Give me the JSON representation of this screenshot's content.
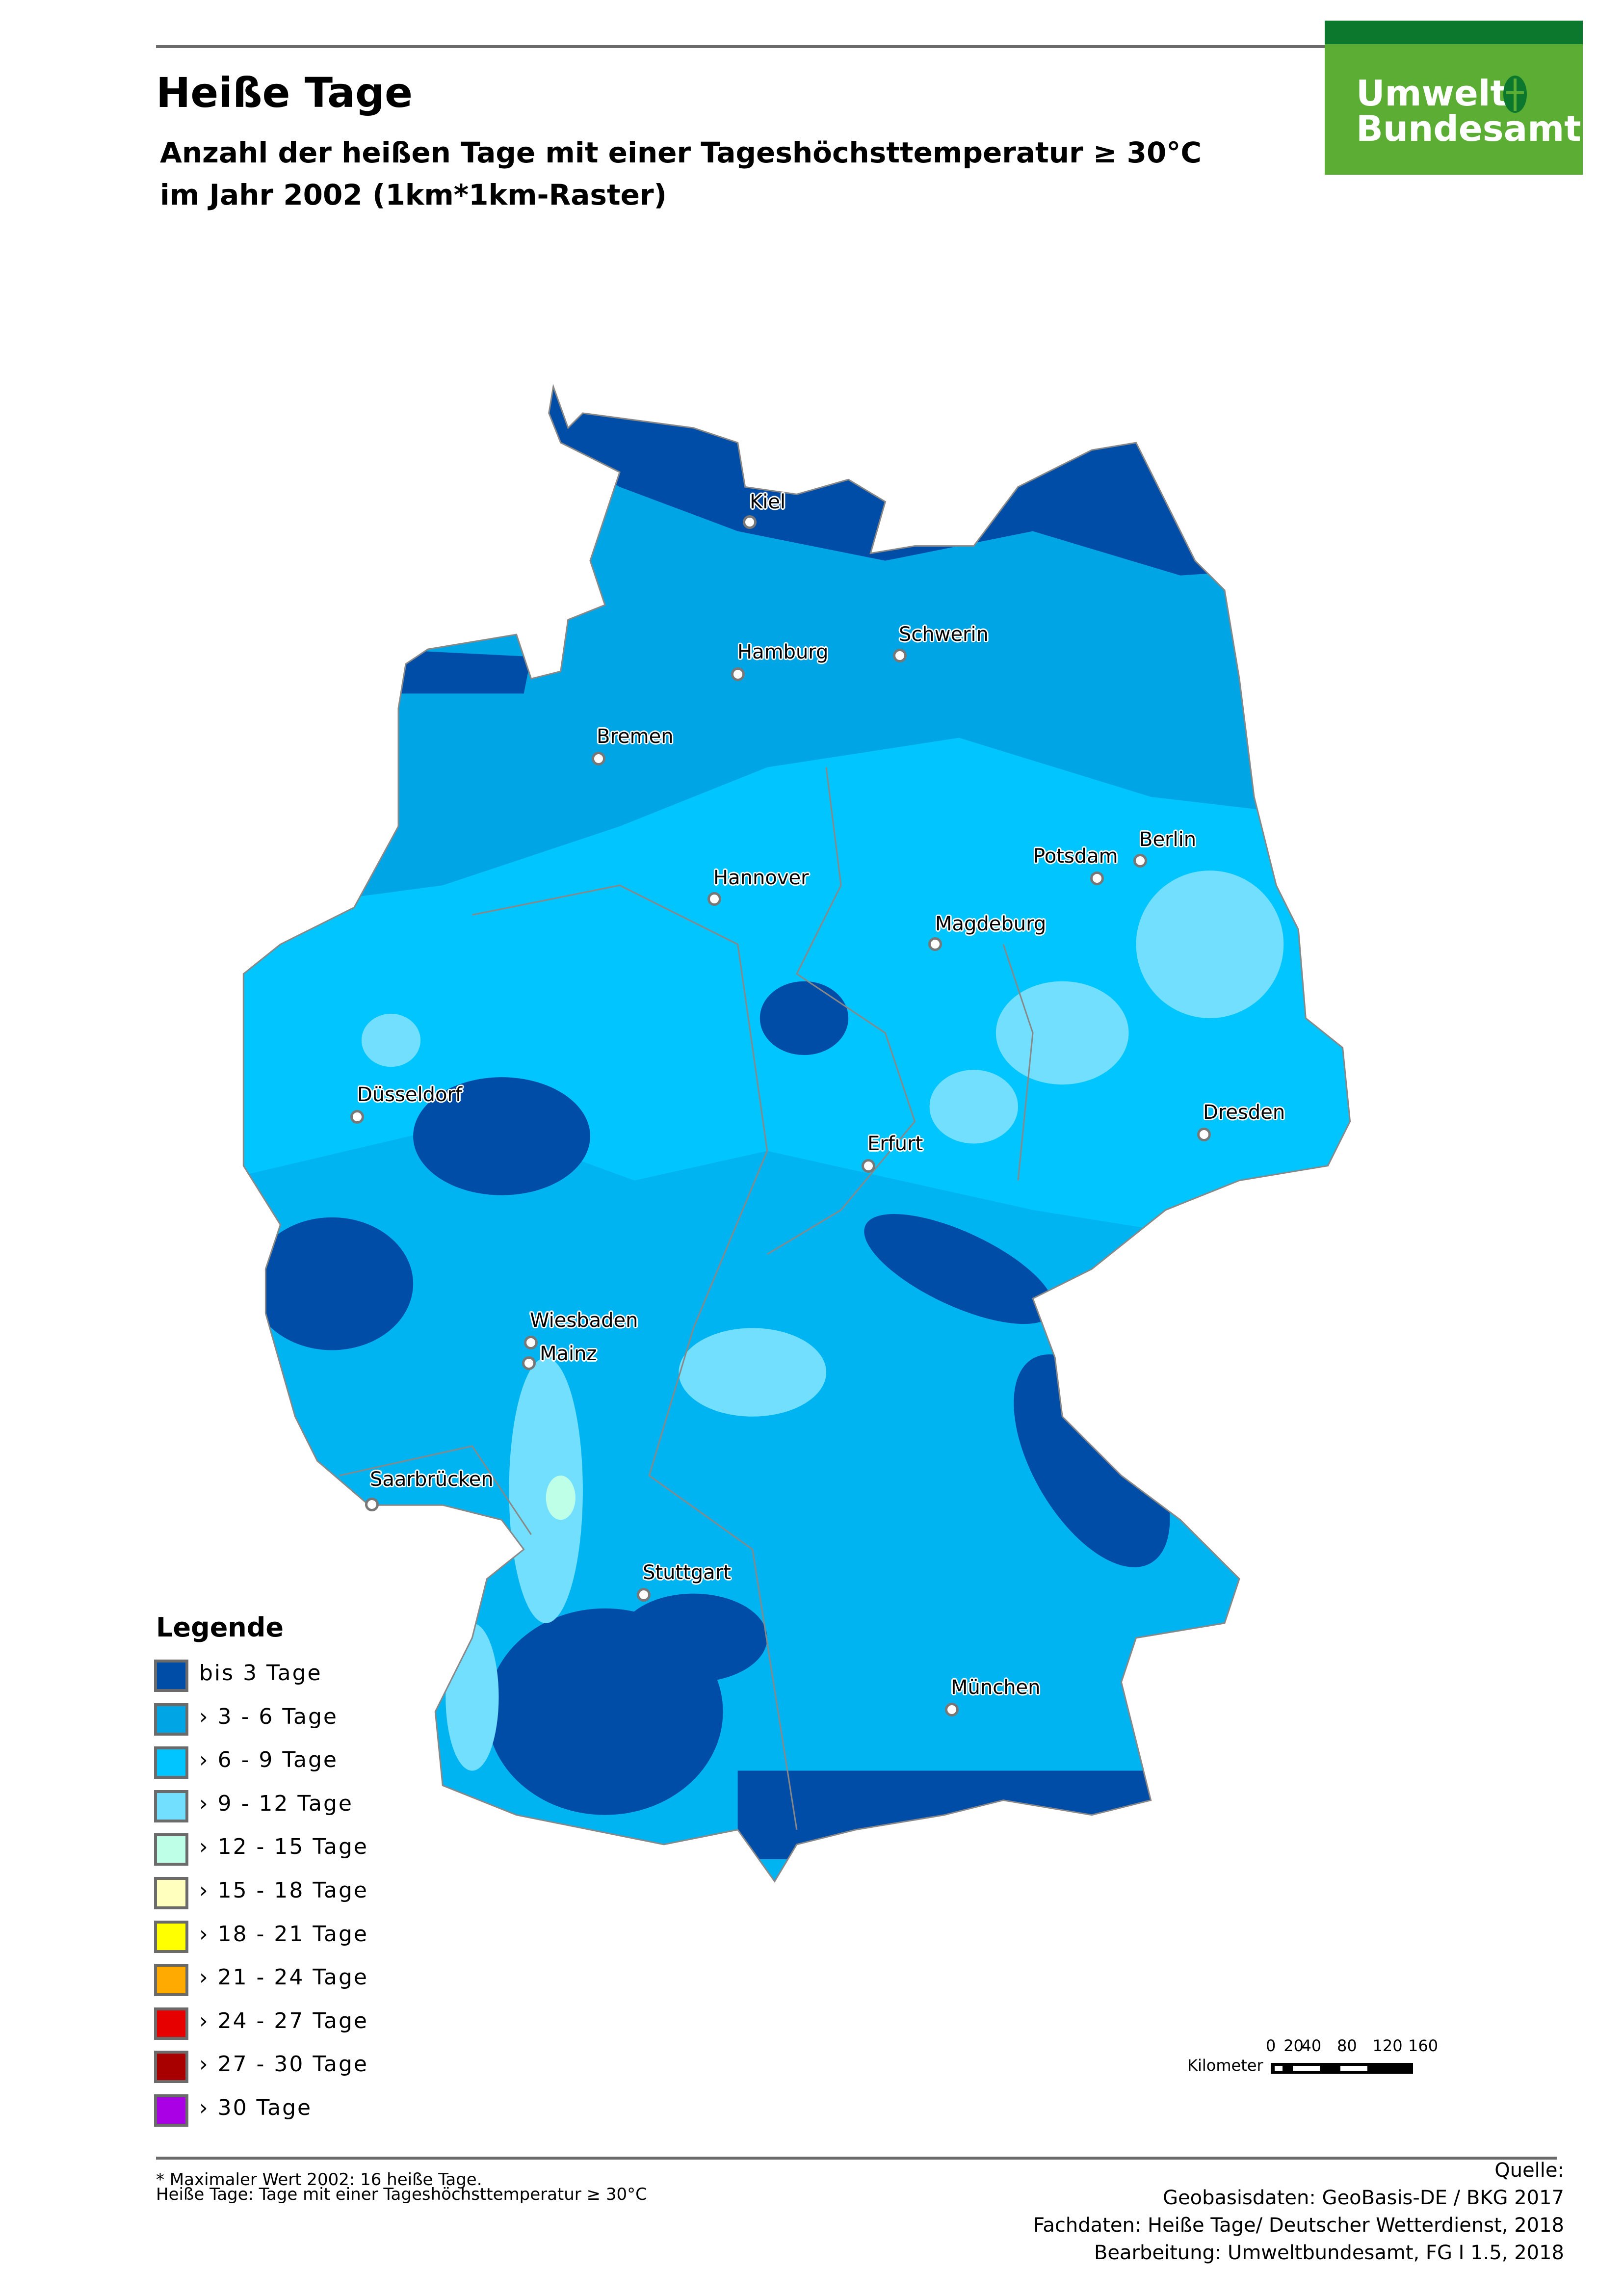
{
  "header": {
    "title": "Heiße Tage",
    "subtitle_line1": "Anzahl der heißen Tage mit einer Tageshöchsttemperatur ≥ 30°C",
    "subtitle_line2": "im Jahr 2002 (1km*1km-Raster)"
  },
  "logo": {
    "line1": "Umwelt",
    "line2": "Bundesamt",
    "colors": {
      "dark": "#0c782d",
      "light": "#5bad34"
    }
  },
  "cities": [
    {
      "name": "Kiel"
    },
    {
      "name": "Hamburg"
    },
    {
      "name": "Schwerin"
    },
    {
      "name": "Bremen"
    },
    {
      "name": "Berlin"
    },
    {
      "name": "Potsdam"
    },
    {
      "name": "Hannover"
    },
    {
      "name": "Magdeburg"
    },
    {
      "name": "Düsseldorf"
    },
    {
      "name": "Dresden"
    },
    {
      "name": "Erfurt"
    },
    {
      "name": "Wiesbaden"
    },
    {
      "name": "Mainz"
    },
    {
      "name": "Saarbrücken"
    },
    {
      "name": "Stuttgart"
    },
    {
      "name": "München"
    }
  ],
  "legend": {
    "title": "Legende",
    "items": [
      {
        "label": "bis 3  Tage",
        "color": "#004da8"
      },
      {
        "label": " › 3 - 6  Tage",
        "color": "#00a5e6"
      },
      {
        "label": " › 6 - 9  Tage",
        "color": "#00c5ff"
      },
      {
        "label": " › 9 - 12 Tage",
        "color": "#73dfff"
      },
      {
        "label": "› 12 - 15 Tage",
        "color": "#beffe8"
      },
      {
        "label": "› 15 - 18 Tage",
        "color": "#ffffbe"
      },
      {
        "label": "› 18 - 21 Tage",
        "color": "#ffff00"
      },
      {
        "label": "› 21 - 24 Tage",
        "color": "#ffaa00"
      },
      {
        "label": "› 24 - 27 Tage",
        "color": "#e60000"
      },
      {
        "label": "› 27 - 30 Tage",
        "color": "#a80000"
      },
      {
        "label": "› 30 Tage",
        "color": "#a900e6"
      }
    ]
  },
  "scalebar": {
    "ticks": [
      "0",
      "20",
      "40",
      "80",
      "120",
      "160"
    ],
    "unit": "Kilometer"
  },
  "footer": {
    "note1": "* Maximaler Wert 2002: 16 heiße Tage.",
    "note2": "Heiße Tage: Tage mit einer Tageshöchsttemperatur ≥ 30°C",
    "source_title": "Quelle:",
    "source1": "Geobasisdaten: GeoBasis-DE / BKG 2017",
    "source2": "Fachdaten: Heiße Tage/ Deutscher Wetterdienst, 2018",
    "source3": "Bearbeitung: Umweltbundesamt, FG I 1.5, 2018"
  }
}
